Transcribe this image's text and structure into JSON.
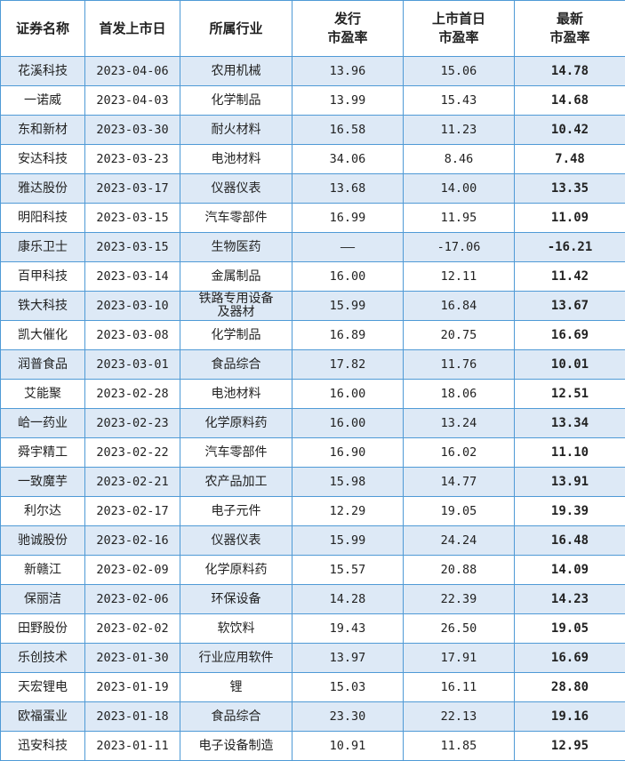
{
  "headers": [
    "证券名称",
    "首发上市日",
    "所属行业",
    "发行\n市盈率",
    "上市首日\n市盈率",
    "最新\n市盈率"
  ],
  "colors": {
    "up": "#e8151b",
    "down": "#5fa43b",
    "neg": "#111111",
    "border": "#4f9ad6",
    "stripe": "#dde9f6"
  },
  "rows": [
    {
      "name": "花溪科技",
      "date": "2023-04-06",
      "industry": "农用机械",
      "issue_pe": "13.96",
      "first_day_pe": "15.06",
      "latest_pe": "14.78",
      "trend": "up"
    },
    {
      "name": "一诺威",
      "date": "2023-04-03",
      "industry": "化学制品",
      "issue_pe": "13.99",
      "first_day_pe": "15.43",
      "latest_pe": "14.68",
      "trend": "up"
    },
    {
      "name": "东和新材",
      "date": "2023-03-30",
      "industry": "耐火材料",
      "issue_pe": "16.58",
      "first_day_pe": "11.23",
      "latest_pe": "10.42",
      "trend": "down"
    },
    {
      "name": "安达科技",
      "date": "2023-03-23",
      "industry": "电池材料",
      "issue_pe": "34.06",
      "first_day_pe": "8.46",
      "latest_pe": "7.48",
      "trend": "down"
    },
    {
      "name": "雅达股份",
      "date": "2023-03-17",
      "industry": "仪器仪表",
      "issue_pe": "13.68",
      "first_day_pe": "14.00",
      "latest_pe": "13.35",
      "trend": "down"
    },
    {
      "name": "明阳科技",
      "date": "2023-03-15",
      "industry": "汽车零部件",
      "issue_pe": "16.99",
      "first_day_pe": "11.95",
      "latest_pe": "11.09",
      "trend": "down"
    },
    {
      "name": "康乐卫士",
      "date": "2023-03-15",
      "industry": "生物医药",
      "issue_pe": "——",
      "first_day_pe": "-17.06",
      "latest_pe": "-16.21",
      "trend": "neg"
    },
    {
      "name": "百甲科技",
      "date": "2023-03-14",
      "industry": "金属制品",
      "issue_pe": "16.00",
      "first_day_pe": "12.11",
      "latest_pe": "11.42",
      "trend": "down"
    },
    {
      "name": "铁大科技",
      "date": "2023-03-10",
      "industry": "铁路专用设备\n及器材",
      "issue_pe": "15.99",
      "first_day_pe": "16.84",
      "latest_pe": "13.67",
      "trend": "down"
    },
    {
      "name": "凯大催化",
      "date": "2023-03-08",
      "industry": "化学制品",
      "issue_pe": "16.89",
      "first_day_pe": "20.75",
      "latest_pe": "16.69",
      "trend": "down"
    },
    {
      "name": "润普食品",
      "date": "2023-03-01",
      "industry": "食品综合",
      "issue_pe": "17.82",
      "first_day_pe": "11.76",
      "latest_pe": "10.01",
      "trend": "down"
    },
    {
      "name": "艾能聚",
      "date": "2023-02-28",
      "industry": "电池材料",
      "issue_pe": "16.00",
      "first_day_pe": "18.06",
      "latest_pe": "12.51",
      "trend": "down"
    },
    {
      "name": "峆一药业",
      "date": "2023-02-23",
      "industry": "化学原料药",
      "issue_pe": "16.00",
      "first_day_pe": "13.24",
      "latest_pe": "13.34",
      "trend": "down"
    },
    {
      "name": "舜宇精工",
      "date": "2023-02-22",
      "industry": "汽车零部件",
      "issue_pe": "16.90",
      "first_day_pe": "16.02",
      "latest_pe": "11.10",
      "trend": "down"
    },
    {
      "name": "一致魔芋",
      "date": "2023-02-21",
      "industry": "农产品加工",
      "issue_pe": "15.98",
      "first_day_pe": "14.77",
      "latest_pe": "13.91",
      "trend": "down"
    },
    {
      "name": "利尔达",
      "date": "2023-02-17",
      "industry": "电子元件",
      "issue_pe": "12.29",
      "first_day_pe": "19.05",
      "latest_pe": "19.39",
      "trend": "up"
    },
    {
      "name": "驰诚股份",
      "date": "2023-02-16",
      "industry": "仪器仪表",
      "issue_pe": "15.99",
      "first_day_pe": "24.24",
      "latest_pe": "16.48",
      "trend": "up"
    },
    {
      "name": "新赣江",
      "date": "2023-02-09",
      "industry": "化学原料药",
      "issue_pe": "15.57",
      "first_day_pe": "20.88",
      "latest_pe": "14.09",
      "trend": "down"
    },
    {
      "name": "保丽洁",
      "date": "2023-02-06",
      "industry": "环保设备",
      "issue_pe": "14.28",
      "first_day_pe": "22.39",
      "latest_pe": "14.23",
      "trend": "down"
    },
    {
      "name": "田野股份",
      "date": "2023-02-02",
      "industry": "软饮料",
      "issue_pe": "19.43",
      "first_day_pe": "26.50",
      "latest_pe": "19.05",
      "trend": "down"
    },
    {
      "name": "乐创技术",
      "date": "2023-01-30",
      "industry": "行业应用软件",
      "issue_pe": "13.97",
      "first_day_pe": "17.91",
      "latest_pe": "16.69",
      "trend": "up"
    },
    {
      "name": "天宏锂电",
      "date": "2023-01-19",
      "industry": "锂",
      "issue_pe": "15.03",
      "first_day_pe": "16.11",
      "latest_pe": "28.80",
      "trend": "up"
    },
    {
      "name": "欧福蛋业",
      "date": "2023-01-18",
      "industry": "食品综合",
      "issue_pe": "23.30",
      "first_day_pe": "22.13",
      "latest_pe": "19.16",
      "trend": "down"
    },
    {
      "name": "迅安科技",
      "date": "2023-01-11",
      "industry": "电子设备制造",
      "issue_pe": "10.91",
      "first_day_pe": "11.85",
      "latest_pe": "12.95",
      "trend": "up"
    }
  ]
}
